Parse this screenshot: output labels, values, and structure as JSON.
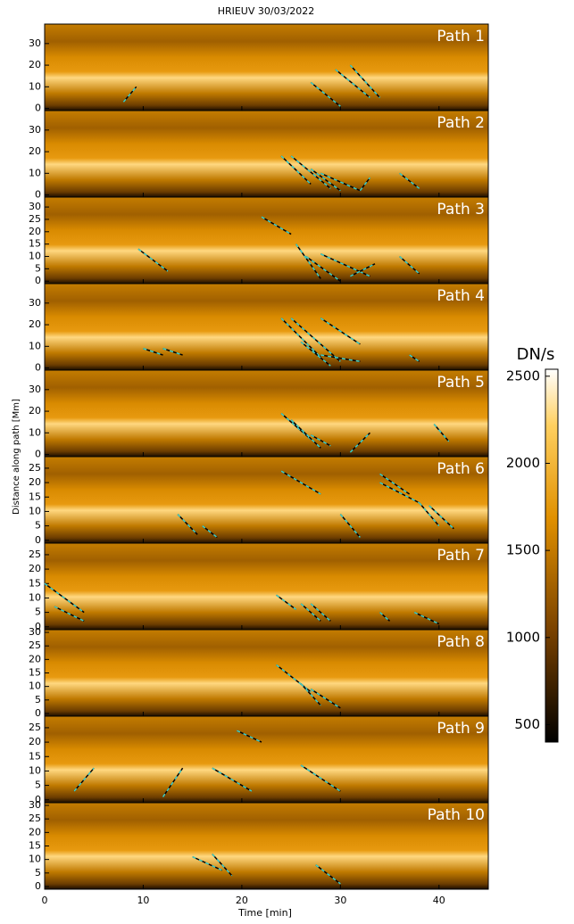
{
  "chart_data": {
    "type": "timedistance",
    "title": "HRIEUV 30/03/2022",
    "xlabel": "Time [min]",
    "ylabel": "Distance along path [Mm]",
    "xlim": [
      0,
      45
    ],
    "xticks": [
      0,
      10,
      20,
      30,
      40
    ],
    "panels": [
      {
        "label": "Path 1",
        "ylim": [
          -1,
          39
        ],
        "yticks": [
          0,
          10,
          20,
          30
        ],
        "tracks": [
          [
            8,
            3,
            9.3,
            10
          ],
          [
            27,
            12,
            30,
            1
          ],
          [
            29.5,
            18,
            33,
            5
          ],
          [
            31,
            20,
            34,
            5
          ]
        ]
      },
      {
        "label": "Path 2",
        "ylim": [
          -1,
          39
        ],
        "yticks": [
          0,
          10,
          20,
          30
        ],
        "tracks": [
          [
            24,
            18,
            27,
            5
          ],
          [
            25,
            18,
            29,
            3
          ],
          [
            27,
            12,
            30,
            2
          ],
          [
            28,
            10,
            32,
            2
          ],
          [
            32,
            2,
            33,
            8
          ],
          [
            36,
            10,
            38,
            3
          ]
        ]
      },
      {
        "label": "Path 3",
        "ylim": [
          -1,
          34
        ],
        "yticks": [
          0,
          5,
          10,
          15,
          20,
          25,
          30
        ],
        "tracks": [
          [
            9.5,
            13,
            12.5,
            4
          ],
          [
            22,
            26,
            25,
            19
          ],
          [
            25.5,
            15,
            28,
            1
          ],
          [
            26.5,
            10,
            30,
            0
          ],
          [
            28,
            11,
            33,
            2
          ],
          [
            31,
            2,
            33.5,
            7
          ],
          [
            36,
            10,
            38,
            3
          ]
        ]
      },
      {
        "label": "Path 4",
        "ylim": [
          -1,
          39
        ],
        "yticks": [
          0,
          10,
          20,
          30
        ],
        "tracks": [
          [
            10,
            9,
            12,
            6
          ],
          [
            12,
            9,
            14,
            6
          ],
          [
            24,
            23,
            28,
            5
          ],
          [
            25,
            23,
            30,
            3
          ],
          [
            26,
            12,
            29,
            1
          ],
          [
            28,
            23,
            32,
            11
          ],
          [
            28,
            6,
            32,
            3
          ],
          [
            37,
            6,
            38,
            3
          ]
        ]
      },
      {
        "label": "Path 5",
        "ylim": [
          -1,
          39
        ],
        "yticks": [
          0,
          10,
          20,
          30
        ],
        "tracks": [
          [
            24,
            19,
            27,
            7
          ],
          [
            25,
            16,
            28,
            3
          ],
          [
            27,
            9,
            29,
            4
          ],
          [
            31,
            1,
            33,
            10
          ],
          [
            39.5,
            14,
            41,
            6
          ]
        ]
      },
      {
        "label": "Path 6",
        "ylim": [
          -1,
          29
        ],
        "yticks": [
          0,
          5,
          10,
          15,
          20,
          25
        ],
        "tracks": [
          [
            13.5,
            9,
            15.5,
            2
          ],
          [
            16,
            5,
            17.5,
            1
          ],
          [
            24,
            24,
            28,
            16
          ],
          [
            30,
            9,
            32,
            1
          ],
          [
            34,
            23,
            37,
            16
          ],
          [
            34,
            20,
            38,
            13
          ],
          [
            38,
            13,
            40,
            5
          ],
          [
            39,
            12,
            41.5,
            4
          ]
        ]
      },
      {
        "label": "Path 7",
        "ylim": [
          -1,
          29
        ],
        "yticks": [
          0,
          5,
          10,
          15,
          20,
          25
        ],
        "tracks": [
          [
            0,
            15,
            4,
            5
          ],
          [
            1,
            7,
            4,
            2
          ],
          [
            23.5,
            11,
            25.5,
            6
          ],
          [
            26,
            8,
            28,
            2
          ],
          [
            27,
            8,
            29,
            2
          ],
          [
            34,
            5,
            35,
            2
          ],
          [
            37.5,
            5,
            40,
            1
          ]
        ]
      },
      {
        "label": "Path 8",
        "ylim": [
          -1,
          31
        ],
        "yticks": [
          0,
          5,
          10,
          15,
          20,
          25,
          30
        ],
        "tracks": [
          [
            23.5,
            18,
            27,
            8
          ],
          [
            26,
            11,
            28,
            3
          ],
          [
            27,
            9,
            30,
            2
          ]
        ]
      },
      {
        "label": "Path 9",
        "ylim": [
          -1,
          29
        ],
        "yticks": [
          0,
          5,
          10,
          15,
          20,
          25
        ],
        "tracks": [
          [
            3,
            3,
            5,
            11
          ],
          [
            12,
            1,
            14,
            11
          ],
          [
            17,
            11,
            21,
            3
          ],
          [
            19.5,
            24,
            22,
            20
          ],
          [
            26,
            12,
            30,
            3
          ]
        ]
      },
      {
        "label": "Path 10",
        "ylim": [
          -1,
          31
        ],
        "yticks": [
          0,
          5,
          10,
          15,
          20,
          25,
          30
        ],
        "tracks": [
          [
            15,
            11,
            18,
            6
          ],
          [
            17,
            12,
            19,
            4
          ],
          [
            27.5,
            8,
            30,
            1
          ]
        ]
      }
    ],
    "colorbar": {
      "label": "DN/s",
      "lim": [
        400,
        2540
      ],
      "ticks": [
        500,
        1000,
        1500,
        2000,
        2500
      ]
    }
  }
}
